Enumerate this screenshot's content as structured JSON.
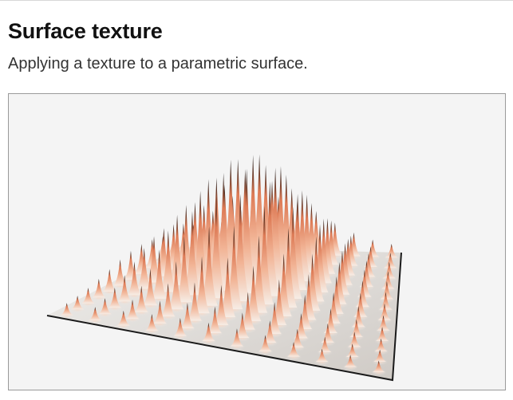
{
  "header": {
    "title": "Surface texture",
    "subtitle": "Applying a texture to a parametric surface."
  },
  "viewport": {
    "background": "#f4f4f4",
    "border_color": "#9a9a9a",
    "surface_colors": {
      "base": "#eeeae6",
      "low": "#f3c3a8",
      "mid": "#e88a68",
      "high": "#000000",
      "edge": "#1a1a1a"
    },
    "grid": {
      "rows": 12,
      "cols": 12
    }
  }
}
